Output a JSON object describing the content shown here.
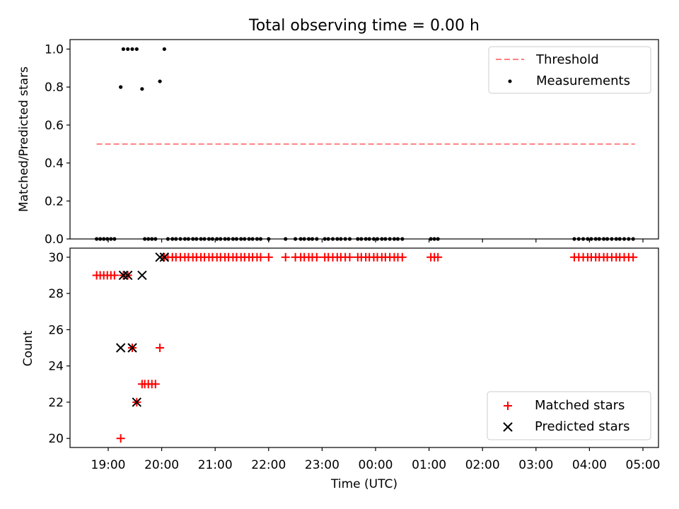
{
  "title": "Total observing time = 0.00 h",
  "chart_data": [
    {
      "type": "scatter",
      "ylabel": "Matched/Predicted stars",
      "ylim": [
        0,
        1.05
      ],
      "yticks": [
        0.0,
        0.2,
        0.4,
        0.6,
        0.8,
        1.0
      ],
      "ytick_labels": [
        "0.0",
        "0.2",
        "0.4",
        "0.6",
        "0.8",
        "1.0"
      ],
      "legend_position": "top-right",
      "threshold": {
        "name": "Threshold",
        "y": 0.5,
        "x_range": [
          "18:47",
          "04:51"
        ],
        "color": "#ff7f7f"
      },
      "series": [
        {
          "name": "Measurements",
          "color": "#000000",
          "x": [
            "18:47",
            "18:51",
            "18:55",
            "18:59",
            "19:03",
            "19:07",
            "19:14",
            "19:17",
            "19:22",
            "19:27",
            "19:32",
            "19:38",
            "19:41",
            "19:45",
            "19:49",
            "19:53",
            "19:58",
            "20:03",
            "20:07",
            "20:12",
            "20:16",
            "20:21",
            "20:26",
            "20:30",
            "20:35",
            "20:39",
            "20:44",
            "20:48",
            "20:53",
            "20:57",
            "21:02",
            "21:06",
            "21:11",
            "21:15",
            "21:20",
            "21:24",
            "21:29",
            "21:33",
            "21:38",
            "21:42",
            "21:47",
            "21:51",
            "22:00",
            "22:19",
            "22:30",
            "22:36",
            "22:40",
            "22:45",
            "22:49",
            "22:54",
            "23:03",
            "23:07",
            "23:12",
            "23:17",
            "23:21",
            "23:26",
            "23:31",
            "23:40",
            "23:44",
            "23:49",
            "23:53",
            "23:58",
            "00:02",
            "00:07",
            "00:11",
            "00:16",
            "00:21",
            "00:25",
            "00:30",
            "01:02",
            "01:06",
            "01:10",
            "03:43",
            "03:48",
            "03:53",
            "03:58",
            "04:02",
            "04:07",
            "04:11",
            "04:16",
            "04:20",
            "04:25",
            "04:30",
            "04:34",
            "04:39",
            "04:44",
            "04:49"
          ],
          "y": [
            0,
            0,
            0,
            0,
            0,
            0,
            0.8,
            1.0,
            1.0,
            1.0,
            1.0,
            0.79,
            0,
            0,
            0,
            0,
            0.83,
            1.0,
            0,
            0,
            0,
            0,
            0,
            0,
            0,
            0,
            0,
            0,
            0,
            0,
            0,
            0,
            0,
            0,
            0,
            0,
            0,
            0,
            0,
            0,
            0,
            0,
            0,
            0,
            0,
            0,
            0,
            0,
            0,
            0,
            0,
            0,
            0,
            0,
            0,
            0,
            0,
            0,
            0,
            0,
            0,
            0,
            0,
            0,
            0,
            0,
            0,
            0,
            0,
            0,
            0,
            0,
            0,
            0,
            0,
            0,
            0,
            0,
            0,
            0,
            0,
            0,
            0,
            0,
            0,
            0,
            0
          ]
        }
      ]
    },
    {
      "type": "scatter",
      "xlabel": "Time (UTC)",
      "ylabel": "Count",
      "ylim": [
        19.5,
        30.5
      ],
      "yticks": [
        20,
        22,
        24,
        26,
        28,
        30
      ],
      "ytick_labels": [
        "20",
        "22",
        "24",
        "26",
        "28",
        "30"
      ],
      "xticks": [
        "19:00",
        "20:00",
        "21:00",
        "22:00",
        "23:00",
        "00:00",
        "01:00",
        "02:00",
        "03:00",
        "04:00",
        "05:00"
      ],
      "legend_position": "bottom-right",
      "series": [
        {
          "name": "Matched stars",
          "color": "#ff0000",
          "marker": "+",
          "x": [
            "18:47",
            "18:51",
            "18:55",
            "18:59",
            "19:03",
            "19:07",
            "19:14",
            "19:17",
            "19:22",
            "19:27",
            "19:32",
            "19:38",
            "19:41",
            "19:45",
            "19:49",
            "19:53",
            "19:58",
            "20:03",
            "20:07",
            "20:12",
            "20:16",
            "20:21",
            "20:26",
            "20:30",
            "20:35",
            "20:39",
            "20:44",
            "20:48",
            "20:53",
            "20:57",
            "21:02",
            "21:06",
            "21:11",
            "21:15",
            "21:20",
            "21:24",
            "21:29",
            "21:33",
            "21:38",
            "21:42",
            "21:47",
            "21:51",
            "22:00",
            "22:19",
            "22:30",
            "22:36",
            "22:40",
            "22:45",
            "22:49",
            "22:54",
            "23:03",
            "23:07",
            "23:12",
            "23:17",
            "23:21",
            "23:26",
            "23:31",
            "23:40",
            "23:44",
            "23:49",
            "23:53",
            "23:58",
            "00:02",
            "00:07",
            "00:11",
            "00:16",
            "00:21",
            "00:25",
            "00:30",
            "01:02",
            "01:06",
            "01:10",
            "03:43",
            "03:48",
            "03:53",
            "03:58",
            "04:02",
            "04:07",
            "04:11",
            "04:16",
            "04:20",
            "04:25",
            "04:30",
            "04:34",
            "04:39",
            "04:44",
            "04:49"
          ],
          "y": [
            29,
            29,
            29,
            29,
            29,
            29,
            20,
            29,
            29,
            25,
            22,
            23,
            23,
            23,
            23,
            23,
            25,
            30,
            30,
            30,
            30,
            30,
            30,
            30,
            30,
            30,
            30,
            30,
            30,
            30,
            30,
            30,
            30,
            30,
            30,
            30,
            30,
            30,
            30,
            30,
            30,
            30,
            30,
            30,
            30,
            30,
            30,
            30,
            30,
            30,
            30,
            30,
            30,
            30,
            30,
            30,
            30,
            30,
            30,
            30,
            30,
            30,
            30,
            30,
            30,
            30,
            30,
            30,
            30,
            30,
            30,
            30,
            30,
            30,
            30,
            30,
            30,
            30,
            30,
            30,
            30,
            30,
            30,
            30,
            30,
            30,
            30
          ]
        },
        {
          "name": "Predicted stars",
          "color": "#000000",
          "marker": "x",
          "x": [
            "19:14",
            "19:17",
            "19:22",
            "19:27",
            "19:32",
            "19:38",
            "19:58",
            "20:03"
          ],
          "y": [
            25,
            29,
            29,
            25,
            22,
            29,
            30,
            30
          ]
        }
      ]
    }
  ]
}
